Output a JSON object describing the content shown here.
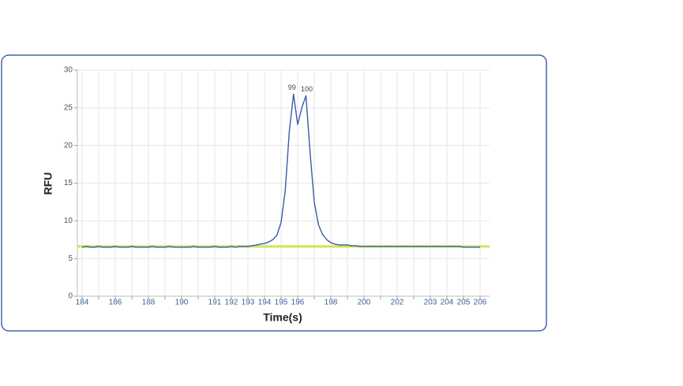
{
  "chart_data": {
    "type": "line",
    "x_label": "Time(s)",
    "y_label": "RFU",
    "categories": [
      "184",
      null,
      null,
      null,
      null,
      null,
      null,
      null,
      "186",
      null,
      null,
      null,
      null,
      null,
      null,
      null,
      "188",
      null,
      null,
      null,
      null,
      null,
      null,
      null,
      "190",
      null,
      null,
      null,
      null,
      null,
      null,
      null,
      "191",
      null,
      null,
      null,
      "192",
      null,
      null,
      null,
      "193",
      null,
      null,
      null,
      "194",
      null,
      null,
      null,
      "195",
      null,
      null,
      null,
      "196",
      null,
      null,
      null,
      null,
      null,
      null,
      null,
      "198",
      null,
      null,
      null,
      null,
      null,
      null,
      null,
      "200",
      null,
      null,
      null,
      null,
      null,
      null,
      null,
      "202",
      null,
      null,
      null,
      null,
      null,
      null,
      null,
      "203",
      null,
      null,
      null,
      "204",
      null,
      null,
      null,
      "205",
      null,
      null,
      null,
      "206"
    ],
    "series": [
      {
        "color": "#3b5ba5",
        "values": [
          6.5,
          6.6,
          6.5,
          6.5,
          6.6,
          6.5,
          6.5,
          6.5,
          6.6,
          6.5,
          6.5,
          6.5,
          6.6,
          6.5,
          6.5,
          6.5,
          6.5,
          6.6,
          6.5,
          6.5,
          6.5,
          6.6,
          6.5,
          6.5,
          6.5,
          6.5,
          6.5,
          6.6,
          6.5,
          6.5,
          6.5,
          6.5,
          6.6,
          6.5,
          6.5,
          6.5,
          6.6,
          6.5,
          6.6,
          6.6,
          6.6,
          6.7,
          6.8,
          6.9,
          7.0,
          7.2,
          7.5,
          8.1,
          9.8,
          14,
          22,
          26.8,
          22.8,
          25,
          26.6,
          19,
          12.5,
          9.5,
          8.2,
          7.5,
          7.1,
          6.9,
          6.8,
          6.8,
          6.8,
          6.7,
          6.7,
          6.6,
          6.6,
          6.6,
          6.6,
          6.6,
          6.6,
          6.6,
          6.6,
          6.6,
          6.6,
          6.6,
          6.6,
          6.6,
          6.6,
          6.6,
          6.6,
          6.6,
          6.6,
          6.6,
          6.6,
          6.6,
          6.6,
          6.6,
          6.6,
          6.6,
          6.5,
          6.5,
          6.5,
          6.5,
          6.5
        ]
      }
    ],
    "threshold": {
      "value": 6.6,
      "color": "#c8e03a"
    },
    "peak_labels": [
      "99",
      "100"
    ],
    "ylim": [
      0,
      30
    ],
    "yticks": [
      0,
      5,
      10,
      15,
      20,
      25,
      30
    ],
    "grid": true
  }
}
